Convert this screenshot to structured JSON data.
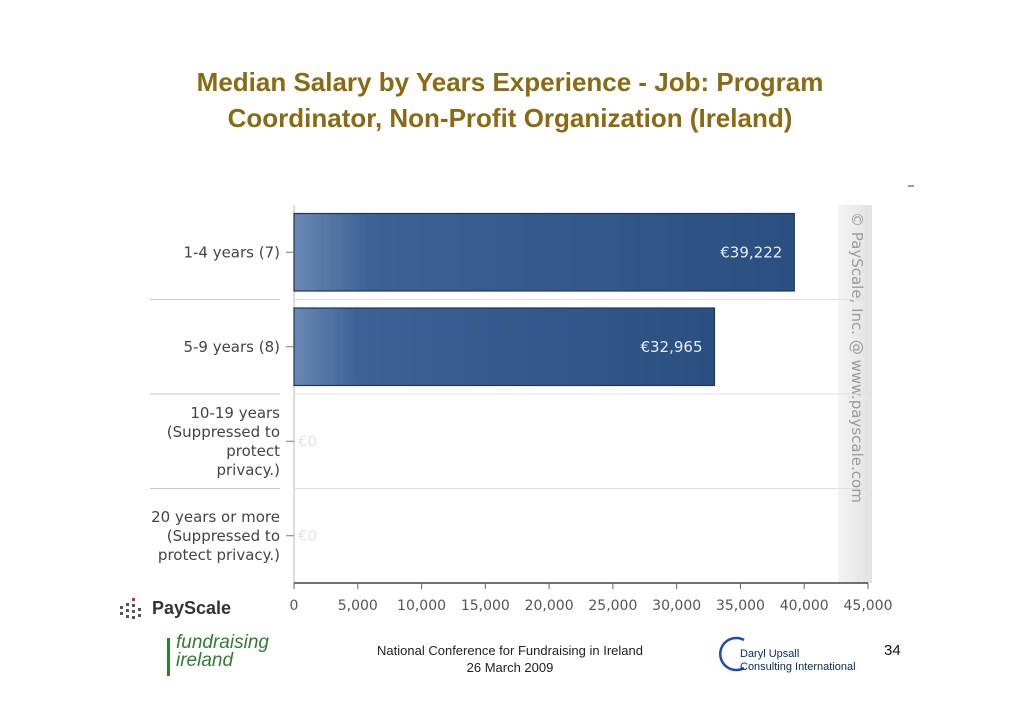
{
  "slide": {
    "title": "Median Salary by Years Experience - Job: Program Coordinator, Non-Profit Organization (Ireland)",
    "payscale_logo_text": "PayScale",
    "fundraising_logo": {
      "line1": "fundraising",
      "line2": "ireland"
    },
    "conference_line1": "National Conference for Fundraising in Ireland",
    "conference_line2": "26 March 2009",
    "consultant_line1": "Daryl Upsall",
    "consultant_line2": "Consulting International",
    "page_number": "34"
  },
  "chart_data": {
    "type": "bar",
    "orientation": "horizontal",
    "title": "",
    "xlabel": "",
    "ylabel": "",
    "categories": [
      [
        "1-4 years (7)"
      ],
      [
        "5-9 years (8)"
      ],
      [
        "10-19 years",
        "(Suppressed to",
        "protect",
        "privacy.)"
      ],
      [
        "20 years or more",
        "(Suppressed to",
        "protect privacy.)"
      ]
    ],
    "values": [
      39222,
      32965,
      0,
      0
    ],
    "value_labels": [
      "€39,222",
      "€32,965",
      "€0",
      "€0"
    ],
    "xlim": [
      0,
      45000
    ],
    "xticks": [
      0,
      5000,
      10000,
      15000,
      20000,
      25000,
      30000,
      35000,
      40000,
      45000
    ],
    "xtick_labels": [
      "0",
      "5,000",
      "10,000",
      "15,000",
      "20,000",
      "25,000",
      "30,000",
      "35,000",
      "40,000",
      "45,000"
    ],
    "watermark": "© PayScale, Inc. @ www.payscale.com",
    "bar_color": "#2f5a8e",
    "grid": "horizontal separators between categories"
  }
}
